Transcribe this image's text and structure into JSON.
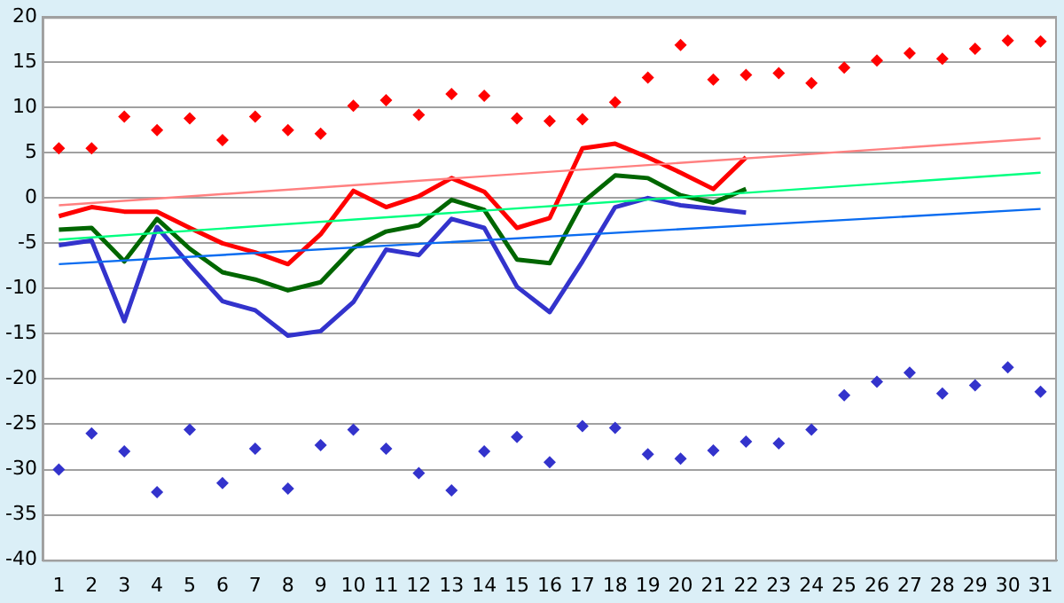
{
  "chart_data": {
    "type": "line",
    "x": [
      1,
      2,
      3,
      4,
      5,
      6,
      7,
      8,
      9,
      10,
      11,
      12,
      13,
      14,
      15,
      16,
      17,
      18,
      19,
      20,
      21,
      22,
      23,
      24,
      25,
      26,
      27,
      28,
      29,
      30,
      31
    ],
    "xlim": [
      0.5,
      31.5
    ],
    "xticks": [
      1,
      2,
      3,
      4,
      5,
      6,
      7,
      8,
      9,
      10,
      11,
      12,
      13,
      14,
      15,
      16,
      17,
      18,
      19,
      20,
      21,
      22,
      23,
      24,
      25,
      26,
      27,
      28,
      29,
      30,
      31
    ],
    "ylim": [
      -40,
      20
    ],
    "yticks": [
      -40,
      -35,
      -30,
      -25,
      -20,
      -15,
      -10,
      -5,
      0,
      5,
      10,
      15,
      20
    ],
    "grid": "y",
    "legend": false,
    "series": [
      {
        "color": "#0a6cf0",
        "values": [
          -7.3,
          null,
          null,
          null,
          null,
          null,
          null,
          null,
          null,
          null,
          null,
          null,
          null,
          null,
          null,
          null,
          null,
          null,
          null,
          null,
          null,
          null,
          null,
          null,
          null,
          null,
          null,
          null,
          null,
          null,
          -1.2
        ],
        "marker": "none"
      },
      {
        "color": "#00ff80",
        "values": [
          -4.6,
          null,
          null,
          null,
          null,
          null,
          null,
          null,
          null,
          null,
          null,
          null,
          null,
          null,
          null,
          null,
          null,
          null,
          null,
          null,
          null,
          null,
          null,
          null,
          null,
          null,
          null,
          null,
          null,
          null,
          2.8
        ],
        "marker": "none"
      },
      {
        "color": "#ff8080",
        "values": [
          -0.8,
          null,
          null,
          null,
          null,
          null,
          null,
          null,
          null,
          null,
          null,
          null,
          null,
          null,
          null,
          null,
          null,
          null,
          null,
          null,
          null,
          null,
          null,
          null,
          null,
          null,
          null,
          null,
          null,
          null,
          6.6
        ],
        "marker": "none"
      },
      {
        "type": "scatter",
        "color": "#ff0000",
        "marker": "diamond",
        "values": [
          5.5,
          5.5,
          9,
          7.5,
          8.8,
          6.4,
          9,
          7.5,
          7.1,
          10.2,
          10.8,
          9.2,
          11.5,
          11.3,
          8.8,
          8.5,
          8.7,
          10.6,
          13.3,
          16.9,
          13.1,
          13.6,
          13.8,
          12.7,
          14.4,
          15.2,
          16,
          15.4,
          16.5,
          17.4,
          17.3
        ]
      },
      {
        "type": "scatter",
        "color": "#3333cc",
        "marker": "diamond",
        "values": [
          -30,
          -26,
          -28,
          -32.5,
          -25.6,
          -31.5,
          -27.7,
          -32.1,
          -27.3,
          -25.6,
          -27.7,
          -30.4,
          -32.3,
          -28,
          -26.4,
          -29.2,
          -25.2,
          -25.4,
          -28.3,
          -28.8,
          -27.9,
          -26.9,
          -27.1,
          -25.6,
          -21.8,
          -20.3,
          -19.3,
          -21.6,
          -20.7,
          -18.7,
          -21.4
        ]
      },
      {
        "color": "#3333cc",
        "marker": "none",
        "values": [
          -5.2,
          -4.7,
          -13.6,
          -3.2,
          -7.4,
          -11.4,
          -12.4,
          -15.2,
          -14.7,
          -11.5,
          -5.7,
          -6.3,
          -2.3,
          -3.3,
          -9.8,
          -12.6,
          -7,
          -1,
          0,
          -0.8,
          -1.2,
          -1.6,
          null,
          null,
          null,
          null,
          null,
          null,
          null,
          null,
          null
        ]
      },
      {
        "color": "#006600",
        "marker": "none",
        "values": [
          -3.5,
          -3.3,
          -7,
          -2.3,
          -5.6,
          -8.2,
          -9,
          -10.2,
          -9.3,
          -5.5,
          -3.7,
          -3,
          -0.2,
          -1.3,
          -6.8,
          -7.2,
          -0.5,
          2.5,
          2.2,
          0.3,
          -0.5,
          1,
          null,
          null,
          null,
          null,
          null,
          null,
          null,
          null,
          null
        ]
      },
      {
        "color": "#ff0000",
        "marker": "none",
        "values": [
          -2,
          -1,
          -1.5,
          -1.5,
          -3.3,
          -5,
          -6,
          -7.3,
          -4,
          0.8,
          -1,
          0.2,
          2.2,
          0.7,
          -3.3,
          -2.2,
          5.5,
          6,
          4.5,
          2.8,
          1,
          4.5,
          null,
          null,
          null,
          null,
          null,
          null,
          null,
          null,
          null
        ]
      }
    ]
  }
}
